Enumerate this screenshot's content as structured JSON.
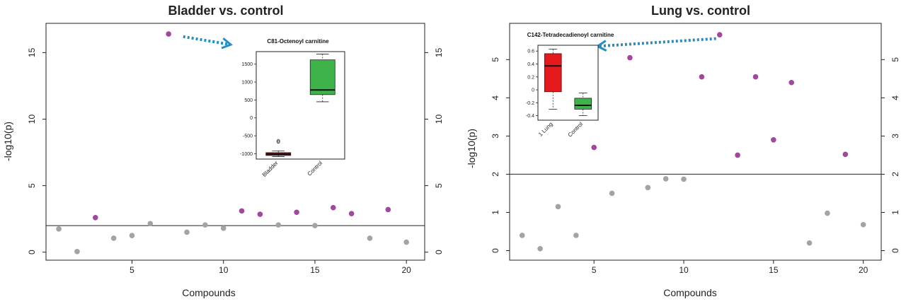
{
  "chart_data": [
    {
      "type": "scatter",
      "title": "Bladder vs. control",
      "xlabel": "Compounds",
      "ylabel": "-log10(p)",
      "xlim": [
        0.3,
        21
      ],
      "ylim": [
        -0.6,
        17.2
      ],
      "x_ticks": [
        5,
        10,
        15,
        20
      ],
      "y_ticks": [
        0,
        5,
        10,
        15
      ],
      "threshold": 2,
      "right_axis_ticks": true,
      "significant_color": "#a2479d",
      "nonsignificant_color": "#a3a3a3",
      "points": [
        {
          "x": 1,
          "y": 1.75,
          "significant": false
        },
        {
          "x": 2,
          "y": 0.05,
          "significant": false
        },
        {
          "x": 3,
          "y": 2.6,
          "significant": true
        },
        {
          "x": 4,
          "y": 1.05,
          "significant": false
        },
        {
          "x": 5,
          "y": 1.25,
          "significant": false
        },
        {
          "x": 6,
          "y": 2.15,
          "significant": false
        },
        {
          "x": 7,
          "y": 16.4,
          "significant": true
        },
        {
          "x": 8,
          "y": 1.5,
          "significant": false
        },
        {
          "x": 9,
          "y": 2.05,
          "significant": false
        },
        {
          "x": 10,
          "y": 1.8,
          "significant": false
        },
        {
          "x": 11,
          "y": 3.1,
          "significant": true
        },
        {
          "x": 12,
          "y": 2.85,
          "significant": true
        },
        {
          "x": 13,
          "y": 2.05,
          "significant": false
        },
        {
          "x": 14,
          "y": 3.0,
          "significant": true
        },
        {
          "x": 15,
          "y": 2.0,
          "significant": false
        },
        {
          "x": 16,
          "y": 3.35,
          "significant": true
        },
        {
          "x": 17,
          "y": 2.9,
          "significant": true
        },
        {
          "x": 18,
          "y": 1.05,
          "significant": false
        },
        {
          "x": 19,
          "y": 3.2,
          "significant": true
        },
        {
          "x": 20,
          "y": 0.75,
          "significant": false
        }
      ],
      "arrow": {
        "from_x": 7.8,
        "from_y": 16.2,
        "to_x": 10.4,
        "to_y": 15.6,
        "color": "#1f8fc4"
      },
      "inset": {
        "type": "boxplot",
        "title": "C81-Octenoyl carnitine",
        "categories": [
          "Bladder",
          "Control"
        ],
        "ylim": [
          -1150,
          1850
        ],
        "y_ticks": [
          -1000,
          -500,
          0,
          500,
          1000,
          1500
        ],
        "boxes": [
          {
            "name": "Bladder",
            "min": -1080,
            "q1": -1050,
            "median": -1010,
            "q3": -970,
            "max": -920,
            "outliers": [
              -640,
              -670
            ],
            "color": "#8b1a1a"
          },
          {
            "name": "Control",
            "min": 450,
            "q1": 650,
            "median": 780,
            "q3": 1620,
            "max": 1780,
            "outliers": [],
            "color": "#3db34a"
          }
        ]
      }
    },
    {
      "type": "scatter",
      "title": "Lung vs. control",
      "xlabel": "Compounds",
      "ylabel": "-log10(p)",
      "xlim": [
        0.3,
        21
      ],
      "ylim": [
        -0.25,
        5.95
      ],
      "x_ticks": [
        5,
        10,
        15,
        20
      ],
      "y_ticks": [
        0,
        1,
        2,
        3,
        4,
        5
      ],
      "threshold": 2,
      "right_axis_ticks": true,
      "significant_color": "#a2479d",
      "nonsignificant_color": "#a3a3a3",
      "points": [
        {
          "x": 1,
          "y": 0.4,
          "significant": false
        },
        {
          "x": 2,
          "y": 0.05,
          "significant": false
        },
        {
          "x": 3,
          "y": 1.15,
          "significant": false
        },
        {
          "x": 4,
          "y": 0.4,
          "significant": false
        },
        {
          "x": 5,
          "y": 2.7,
          "significant": true
        },
        {
          "x": 6,
          "y": 1.5,
          "significant": false
        },
        {
          "x": 7,
          "y": 5.05,
          "significant": true
        },
        {
          "x": 8,
          "y": 1.65,
          "significant": false
        },
        {
          "x": 9,
          "y": 1.88,
          "significant": false
        },
        {
          "x": 10,
          "y": 1.87,
          "significant": false
        },
        {
          "x": 11,
          "y": 4.55,
          "significant": true
        },
        {
          "x": 12,
          "y": 5.65,
          "significant": true
        },
        {
          "x": 13,
          "y": 2.5,
          "significant": true
        },
        {
          "x": 14,
          "y": 4.55,
          "significant": true
        },
        {
          "x": 15,
          "y": 2.9,
          "significant": true
        },
        {
          "x": 16,
          "y": 4.4,
          "significant": true
        },
        {
          "x": 17,
          "y": 0.2,
          "significant": false
        },
        {
          "x": 18,
          "y": 0.98,
          "significant": false
        },
        {
          "x": 19,
          "y": 2.52,
          "significant": true
        },
        {
          "x": 20,
          "y": 0.68,
          "significant": false
        }
      ],
      "arrow": {
        "from_x": 11.8,
        "from_y": 5.55,
        "to_x": 5.2,
        "to_y": 5.35,
        "color": "#1f8fc4"
      },
      "inset": {
        "type": "boxplot",
        "title": "C142-Tetradecadienoyl carnitine",
        "categories": [
          "1 Lung",
          "Control"
        ],
        "ylim": [
          -0.47,
          0.69
        ],
        "y_ticks": [
          -0.4,
          -0.2,
          0,
          0.2,
          0.4,
          0.6
        ],
        "boxes": [
          {
            "name": "1 Lung",
            "min": -0.3,
            "q1": -0.03,
            "median": 0.37,
            "q3": 0.56,
            "max": 0.63,
            "outliers": [],
            "color": "#e41a1c"
          },
          {
            "name": "Control",
            "min": -0.4,
            "q1": -0.3,
            "median": -0.24,
            "q3": -0.13,
            "max": -0.05,
            "outliers": [],
            "color": "#3db34a"
          }
        ]
      }
    }
  ]
}
